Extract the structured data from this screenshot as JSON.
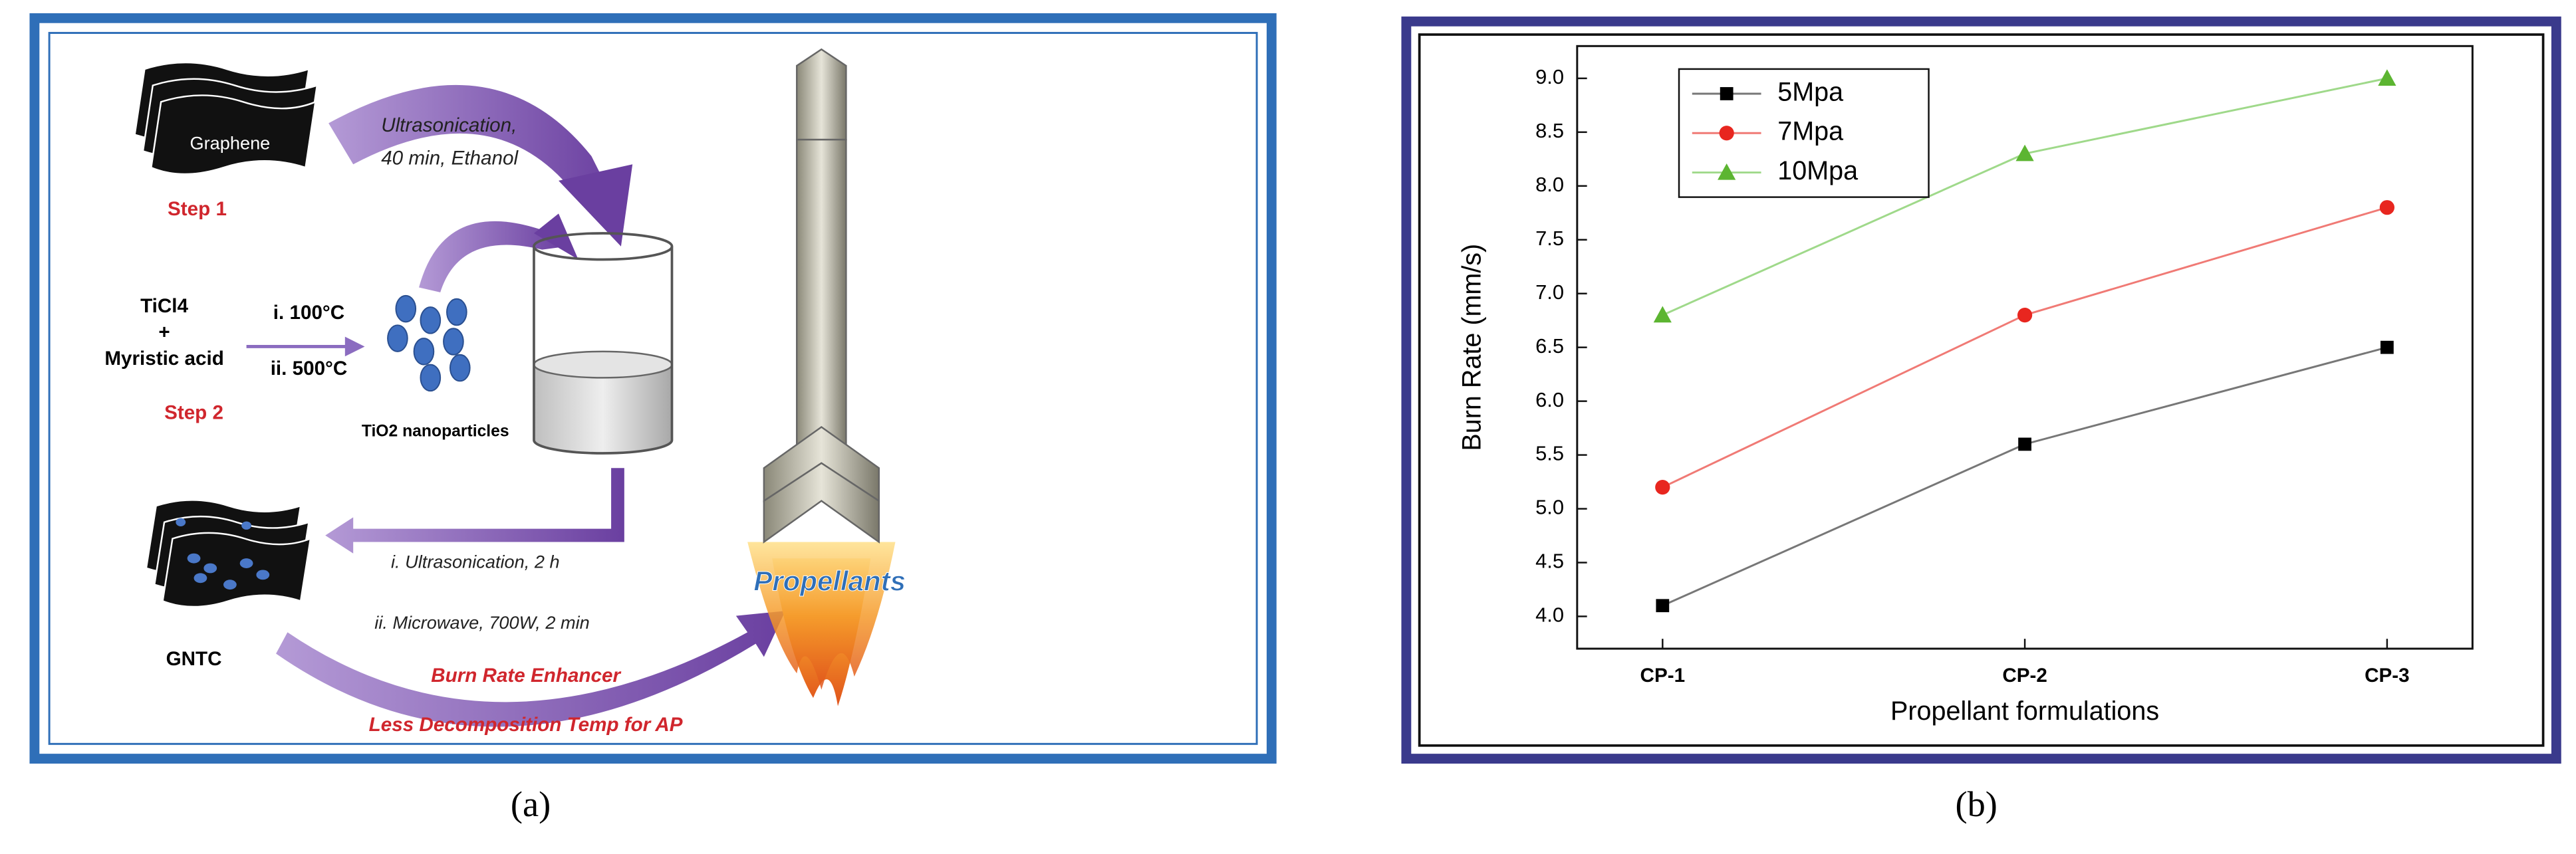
{
  "panel_a": {
    "graphene": "Graphene",
    "step1": "Step 1",
    "ultrasonication_1": "Ultrasonication,",
    "ultrasonication_2": "40 min, Ethanol",
    "ticl4": "TiCl4",
    "plus": "+",
    "myristic": "Myristic acid",
    "temp1": "i. 100°C",
    "temp2": "ii. 500°C",
    "step2": "Step 2",
    "tio2": "TiO2 nanoparticles",
    "sono": "i. Ultrasonication, 2 h",
    "microwave": "ii. Microwave, 700W, 2 min",
    "gntc": "GNTC",
    "burn": "Burn Rate Enhancer",
    "decomp": "Less Decomposition Temp for AP",
    "propellants": "Propellants"
  },
  "captions": [
    "(a)",
    "(b)"
  ],
  "chart_data": {
    "type": "line",
    "x_label": "Propellant formulations",
    "y_label": "Burn Rate (mm/s)",
    "categories": [
      "CP-1",
      "CP-2",
      "CP-3"
    ],
    "series": [
      {
        "name": "5Mpa",
        "color": "#000000",
        "line_color": "#777777",
        "marker": "square",
        "values": [
          4.1,
          5.6,
          6.5
        ]
      },
      {
        "name": "7Mpa",
        "color": "#e8261f",
        "line_color": "#f07a75",
        "marker": "circle",
        "values": [
          5.2,
          6.8,
          7.8
        ]
      },
      {
        "name": "10Mpa",
        "color": "#5cb531",
        "line_color": "#9fd98a",
        "marker": "triangle",
        "values": [
          6.8,
          8.3,
          9.0
        ]
      }
    ],
    "ylim": [
      3.7,
      9.3
    ],
    "yticks": [
      {
        "value": 4,
        "label": "4.0"
      },
      4.5,
      {
        "value": 5,
        "label": "5.0"
      },
      5.5,
      {
        "value": 6,
        "label": "6.0"
      },
      6.5,
      {
        "value": 7,
        "label": "7.0"
      },
      7.5,
      {
        "value": 8,
        "label": "8.0"
      },
      8.5,
      {
        "value": 9,
        "label": "9.0"
      }
    ],
    "legend": "upper-left",
    "grid": false
  }
}
